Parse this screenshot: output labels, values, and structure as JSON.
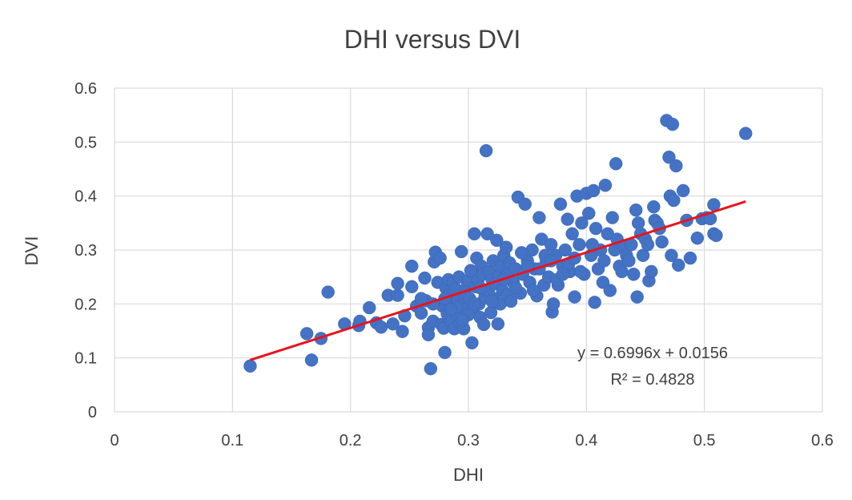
{
  "chart_data": {
    "type": "scatter",
    "title": "DHI versus DVI",
    "xlabel": "DHI",
    "ylabel": "DVI",
    "xlim": [
      0,
      0.6
    ],
    "ylim": [
      0,
      0.6
    ],
    "x_ticks": [
      "0",
      "0.1",
      "0.2",
      "0.3",
      "0.4",
      "0.5",
      "0.6"
    ],
    "y_ticks": [
      "0",
      "0.1",
      "0.2",
      "0.3",
      "0.4",
      "0.5",
      "0.6"
    ],
    "grid": true,
    "legend": "none",
    "marker_color": "#4472c4",
    "trendline": {
      "type": "linear",
      "slope": 0.6996,
      "intercept": 0.0156,
      "x_range": [
        0.115,
        0.535
      ],
      "color": "#e8141c",
      "equation_label": "y = 0.6996x + 0.0156",
      "r2_label": "R² = 0.4828"
    },
    "points": [
      [
        0.115,
        0.085
      ],
      [
        0.163,
        0.145
      ],
      [
        0.167,
        0.096
      ],
      [
        0.175,
        0.136
      ],
      [
        0.181,
        0.222
      ],
      [
        0.195,
        0.163
      ],
      [
        0.207,
        0.16
      ],
      [
        0.208,
        0.168
      ],
      [
        0.216,
        0.193
      ],
      [
        0.222,
        0.165
      ],
      [
        0.226,
        0.157
      ],
      [
        0.232,
        0.216
      ],
      [
        0.236,
        0.163
      ],
      [
        0.24,
        0.216
      ],
      [
        0.24,
        0.238
      ],
      [
        0.244,
        0.149
      ],
      [
        0.246,
        0.178
      ],
      [
        0.252,
        0.27
      ],
      [
        0.252,
        0.232
      ],
      [
        0.256,
        0.196
      ],
      [
        0.26,
        0.183
      ],
      [
        0.263,
        0.248
      ],
      [
        0.264,
        0.206
      ],
      [
        0.266,
        0.156
      ],
      [
        0.266,
        0.143
      ],
      [
        0.268,
        0.08
      ],
      [
        0.27,
        0.168
      ],
      [
        0.271,
        0.278
      ],
      [
        0.272,
        0.296
      ],
      [
        0.274,
        0.24
      ],
      [
        0.276,
        0.285
      ],
      [
        0.277,
        0.162
      ],
      [
        0.278,
        0.196
      ],
      [
        0.279,
        0.155
      ],
      [
        0.28,
        0.11
      ],
      [
        0.281,
        0.229
      ],
      [
        0.282,
        0.182
      ],
      [
        0.283,
        0.245
      ],
      [
        0.284,
        0.216
      ],
      [
        0.285,
        0.168
      ],
      [
        0.286,
        0.2
      ],
      [
        0.287,
        0.24
      ],
      [
        0.288,
        0.154
      ],
      [
        0.289,
        0.228
      ],
      [
        0.29,
        0.18
      ],
      [
        0.291,
        0.206
      ],
      [
        0.292,
        0.25
      ],
      [
        0.293,
        0.165
      ],
      [
        0.294,
        0.297
      ],
      [
        0.295,
        0.2
      ],
      [
        0.296,
        0.154
      ],
      [
        0.297,
        0.22
      ],
      [
        0.298,
        0.19
      ],
      [
        0.299,
        0.233
      ],
      [
        0.3,
        0.244
      ],
      [
        0.301,
        0.21
      ],
      [
        0.302,
        0.262
      ],
      [
        0.303,
        0.128
      ],
      [
        0.304,
        0.19
      ],
      [
        0.305,
        0.33
      ],
      [
        0.306,
        0.232
      ],
      [
        0.307,
        0.285
      ],
      [
        0.308,
        0.244
      ],
      [
        0.309,
        0.2
      ],
      [
        0.31,
        0.175
      ],
      [
        0.311,
        0.27
      ],
      [
        0.312,
        0.255
      ],
      [
        0.313,
        0.162
      ],
      [
        0.314,
        0.213
      ],
      [
        0.315,
        0.484
      ],
      [
        0.316,
        0.33
      ],
      [
        0.317,
        0.225
      ],
      [
        0.318,
        0.26
      ],
      [
        0.319,
        0.184
      ],
      [
        0.32,
        0.245
      ],
      [
        0.321,
        0.28
      ],
      [
        0.322,
        0.21
      ],
      [
        0.323,
        0.238
      ],
      [
        0.324,
        0.318
      ],
      [
        0.325,
        0.163
      ],
      [
        0.326,
        0.252
      ],
      [
        0.327,
        0.2
      ],
      [
        0.328,
        0.27
      ],
      [
        0.329,
        0.225
      ],
      [
        0.33,
        0.29
      ],
      [
        0.331,
        0.247
      ],
      [
        0.332,
        0.305
      ],
      [
        0.333,
        0.217
      ],
      [
        0.334,
        0.26
      ],
      [
        0.335,
        0.276
      ],
      [
        0.336,
        0.205
      ],
      [
        0.338,
        0.24
      ],
      [
        0.34,
        0.265
      ],
      [
        0.342,
        0.398
      ],
      [
        0.344,
        0.22
      ],
      [
        0.346,
        0.255
      ],
      [
        0.348,
        0.385
      ],
      [
        0.35,
        0.28
      ],
      [
        0.352,
        0.24
      ],
      [
        0.354,
        0.3
      ],
      [
        0.356,
        0.265
      ],
      [
        0.358,
        0.215
      ],
      [
        0.36,
        0.36
      ],
      [
        0.362,
        0.32
      ],
      [
        0.364,
        0.235
      ],
      [
        0.366,
        0.28
      ],
      [
        0.368,
        0.25
      ],
      [
        0.37,
        0.31
      ],
      [
        0.371,
        0.185
      ],
      [
        0.372,
        0.2
      ],
      [
        0.374,
        0.29
      ],
      [
        0.376,
        0.235
      ],
      [
        0.378,
        0.385
      ],
      [
        0.38,
        0.27
      ],
      [
        0.382,
        0.3
      ],
      [
        0.384,
        0.357
      ],
      [
        0.386,
        0.26
      ],
      [
        0.388,
        0.33
      ],
      [
        0.39,
        0.213
      ],
      [
        0.392,
        0.4
      ],
      [
        0.394,
        0.31
      ],
      [
        0.396,
        0.35
      ],
      [
        0.398,
        0.255
      ],
      [
        0.4,
        0.405
      ],
      [
        0.402,
        0.368
      ],
      [
        0.404,
        0.29
      ],
      [
        0.406,
        0.41
      ],
      [
        0.407,
        0.203
      ],
      [
        0.408,
        0.34
      ],
      [
        0.41,
        0.265
      ],
      [
        0.412,
        0.3
      ],
      [
        0.414,
        0.24
      ],
      [
        0.416,
        0.42
      ],
      [
        0.418,
        0.33
      ],
      [
        0.42,
        0.225
      ],
      [
        0.422,
        0.36
      ],
      [
        0.424,
        0.3
      ],
      [
        0.425,
        0.46
      ],
      [
        0.426,
        0.32
      ],
      [
        0.428,
        0.27
      ],
      [
        0.43,
        0.26
      ],
      [
        0.432,
        0.305
      ],
      [
        0.434,
        0.29
      ],
      [
        0.436,
        0.28
      ],
      [
        0.438,
        0.31
      ],
      [
        0.44,
        0.255
      ],
      [
        0.442,
        0.374
      ],
      [
        0.443,
        0.213
      ],
      [
        0.444,
        0.35
      ],
      [
        0.446,
        0.33
      ],
      [
        0.448,
        0.29
      ],
      [
        0.45,
        0.32
      ],
      [
        0.452,
        0.31
      ],
      [
        0.453,
        0.243
      ],
      [
        0.455,
        0.26
      ],
      [
        0.457,
        0.38
      ],
      [
        0.458,
        0.355
      ],
      [
        0.46,
        0.35
      ],
      [
        0.462,
        0.34
      ],
      [
        0.464,
        0.315
      ],
      [
        0.468,
        0.54
      ],
      [
        0.47,
        0.472
      ],
      [
        0.471,
        0.4
      ],
      [
        0.472,
        0.29
      ],
      [
        0.473,
        0.533
      ],
      [
        0.474,
        0.392
      ],
      [
        0.476,
        0.456
      ],
      [
        0.478,
        0.272
      ],
      [
        0.482,
        0.41
      ],
      [
        0.485,
        0.355
      ],
      [
        0.488,
        0.285
      ],
      [
        0.494,
        0.322
      ],
      [
        0.498,
        0.358
      ],
      [
        0.502,
        0.36
      ],
      [
        0.505,
        0.358
      ],
      [
        0.508,
        0.384
      ],
      [
        0.508,
        0.33
      ],
      [
        0.51,
        0.327
      ],
      [
        0.535,
        0.516
      ],
      [
        0.345,
        0.295
      ],
      [
        0.36,
        0.265
      ],
      [
        0.365,
        0.29
      ],
      [
        0.375,
        0.245
      ],
      [
        0.385,
        0.275
      ],
      [
        0.395,
        0.26
      ],
      [
        0.405,
        0.31
      ],
      [
        0.415,
        0.28
      ],
      [
        0.33,
        0.245
      ],
      [
        0.34,
        0.23
      ],
      [
        0.35,
        0.27
      ],
      [
        0.355,
        0.225
      ],
      [
        0.37,
        0.28
      ],
      [
        0.38,
        0.255
      ],
      [
        0.39,
        0.285
      ],
      [
        0.3,
        0.18
      ],
      [
        0.31,
        0.23
      ],
      [
        0.32,
        0.205
      ],
      [
        0.29,
        0.195
      ],
      [
        0.28,
        0.21
      ],
      [
        0.27,
        0.2
      ],
      [
        0.26,
        0.21
      ],
      [
        0.285,
        0.19
      ],
      [
        0.295,
        0.17
      ],
      [
        0.305,
        0.2
      ]
    ]
  }
}
